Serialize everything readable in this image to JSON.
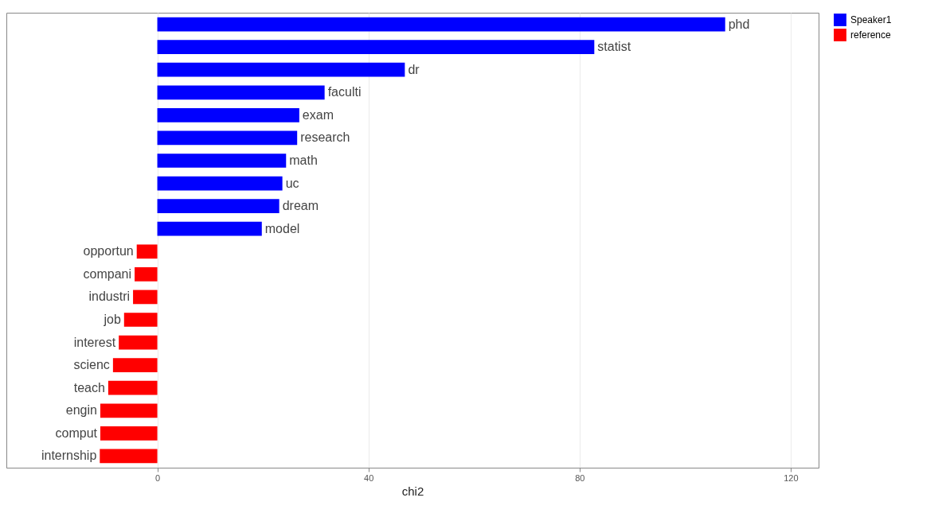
{
  "chart_data": {
    "type": "bar",
    "orientation": "horizontal",
    "xlabel": "chi2",
    "categories": [
      "phd",
      "statist",
      "dr",
      "faculti",
      "exam",
      "research",
      "math",
      "uc",
      "dream",
      "model",
      "opportun",
      "compani",
      "industri",
      "job",
      "interest",
      "scienc",
      "teach",
      "engin",
      "comput",
      "internship"
    ],
    "series": [
      {
        "name": "Speaker1",
        "color": "#0000ff",
        "values": [
          107.6,
          82.8,
          46.9,
          31.7,
          26.9,
          26.5,
          24.4,
          23.7,
          23.1,
          19.8,
          null,
          null,
          null,
          null,
          null,
          null,
          null,
          null,
          null,
          null
        ]
      },
      {
        "name": "reference",
        "color": "#ff0000",
        "values": [
          null,
          null,
          null,
          null,
          null,
          null,
          null,
          null,
          null,
          null,
          -3.9,
          -4.3,
          -4.6,
          -6.3,
          -7.3,
          -8.4,
          -9.3,
          -10.8,
          -10.8,
          -10.9
        ]
      }
    ],
    "xlim": [
      -28.6,
      125.3
    ],
    "xticks": [
      0,
      40,
      80,
      120
    ],
    "grid": "x",
    "legend": "right",
    "tick_labels": "x"
  }
}
